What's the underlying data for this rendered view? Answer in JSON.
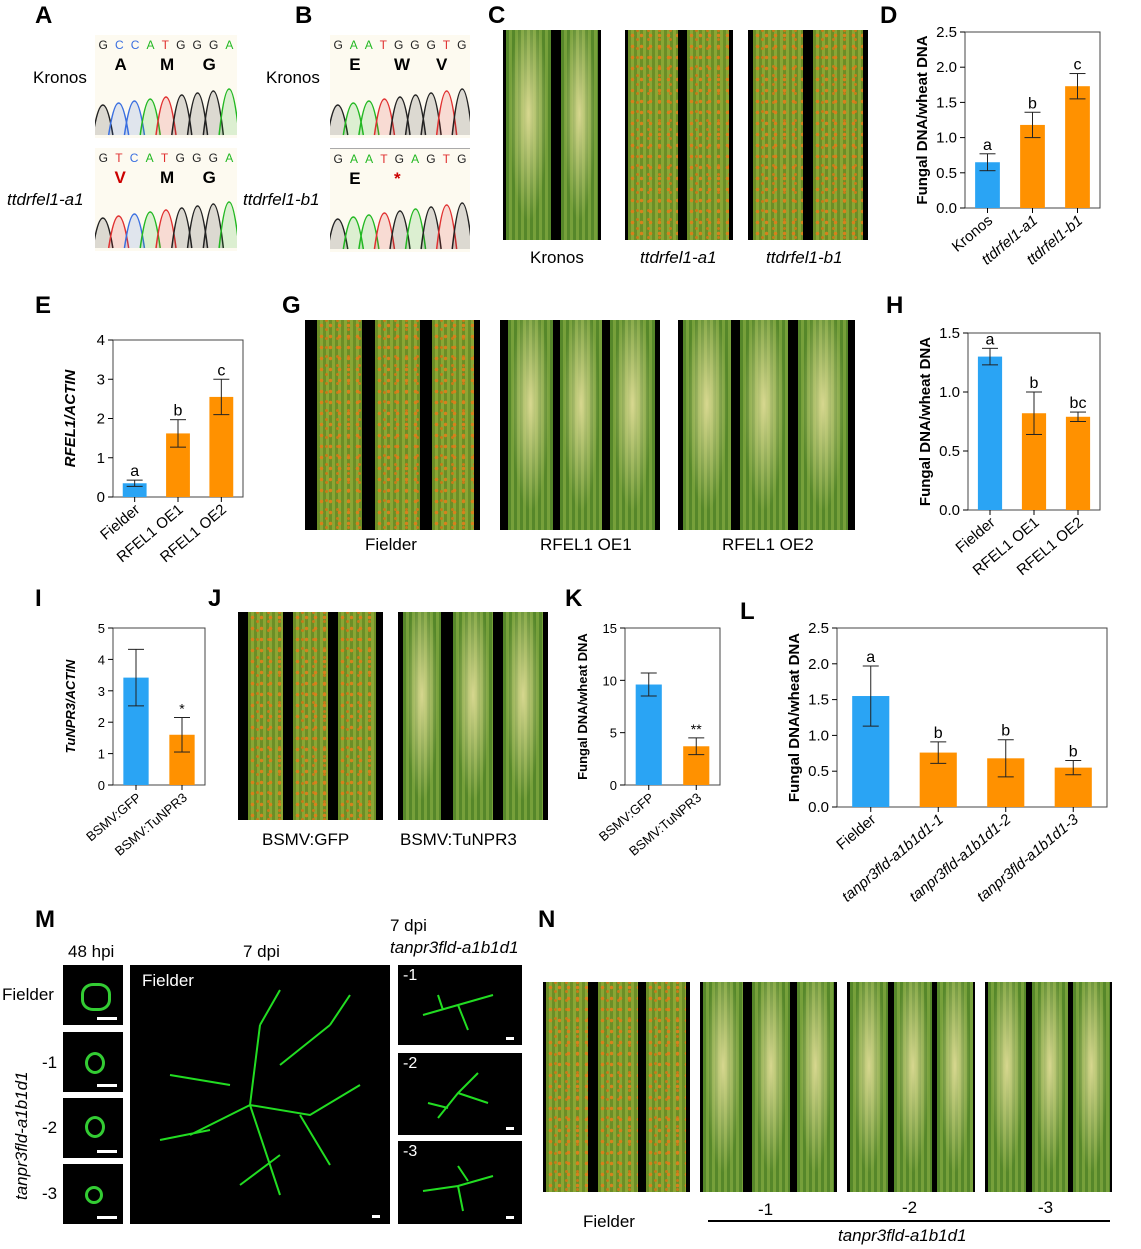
{
  "panels": {
    "A": "A",
    "B": "B",
    "C": "C",
    "D": "D",
    "E": "E",
    "G": "G",
    "H": "H",
    "I": "I",
    "J": "J",
    "K": "K",
    "L": "L",
    "M": "M",
    "N": "N"
  },
  "panelA": {
    "kronos": {
      "label": "Kronos",
      "seq": [
        "G",
        "C",
        "C",
        "A",
        "T",
        "G",
        "G",
        "G",
        "A"
      ],
      "aa": [
        "A",
        "M",
        "G"
      ]
    },
    "mutant": {
      "label": "ttdrfel1-a1",
      "seq": [
        "G",
        "T",
        "C",
        "A",
        "T",
        "G",
        "G",
        "G",
        "A"
      ],
      "aa": [
        "V",
        "M",
        "G"
      ]
    }
  },
  "panelB": {
    "kronos": {
      "label": "Kronos",
      "seq": [
        "G",
        "A",
        "A",
        "T",
        "G",
        "G",
        "G",
        "T",
        "G"
      ],
      "aa": [
        "E",
        "W",
        "V"
      ]
    },
    "mutant": {
      "label": "ttdrfel1-b1",
      "seq": [
        "G",
        "A",
        "A",
        "T",
        "G",
        "A",
        "G",
        "T",
        "G"
      ],
      "aa": [
        "E",
        "*"
      ]
    }
  },
  "base_colors": {
    "G": "#222222",
    "A": "#22b822",
    "T": "#e03030",
    "C": "#3a6fe0"
  },
  "panelC": {
    "labels": [
      "Kronos",
      "ttdrfel1-a1",
      "ttdrfel1-b1"
    ]
  },
  "panelG": {
    "labels": [
      "Fielder",
      "RFEL1 OE1",
      "RFEL1 OE2"
    ]
  },
  "panelJ": {
    "labels": [
      "BSMV:GFP",
      "BSMV:TuNPR3"
    ]
  },
  "panelM": {
    "col1": "48 hpi",
    "col2": "7 dpi",
    "col3a": "7 dpi",
    "col3b": "tanpr3fld-a1b1d1",
    "fielder": "Fielder",
    "inset_fielder": "Fielder",
    "rowgroup": "tanpr3fld-a1b1d1",
    "rows": [
      "-1",
      "-2",
      "-3"
    ]
  },
  "panelN": {
    "fielder": "Fielder",
    "lines": [
      "-1",
      "-2",
      "-3"
    ],
    "group": "tanpr3fld-a1b1d1"
  },
  "colors": {
    "control": "#2aa4f4",
    "mutant": "#ff9100"
  },
  "chart_data": [
    {
      "id": "D",
      "type": "bar",
      "ylabel": "Fungal DNA/wheat DNA",
      "ylim": [
        0,
        2.5
      ],
      "ticks": [
        "0.0",
        "0.5",
        "1.0",
        "1.5",
        "2.0",
        "2.5"
      ],
      "categories": [
        "Kronos",
        "ttdrfel1-a1",
        "ttdrfel1-b1"
      ],
      "values": [
        0.65,
        1.18,
        1.73
      ],
      "errors": [
        0.12,
        0.18,
        0.18
      ],
      "letters": [
        "a",
        "b",
        "c"
      ]
    },
    {
      "id": "E",
      "type": "bar",
      "ylabel": "RFEL1/ACTIN",
      "ylim": [
        0,
        4
      ],
      "ticks": [
        "0",
        "1",
        "2",
        "3",
        "4"
      ],
      "categories": [
        "Fielder",
        "RFEL1 OE1",
        "RFEL1 OE2"
      ],
      "values": [
        0.35,
        1.62,
        2.55
      ],
      "errors": [
        0.08,
        0.35,
        0.45
      ],
      "letters": [
        "a",
        "b",
        "c"
      ]
    },
    {
      "id": "H",
      "type": "bar",
      "ylabel": "Fungal DNA/wheat DNA",
      "ylim": [
        0,
        1.5
      ],
      "ticks": [
        "0.0",
        "0.5",
        "1.0",
        "1.5"
      ],
      "categories": [
        "Fielder",
        "RFEL1 OE1",
        "RFEL1 OE2"
      ],
      "values": [
        1.3,
        0.82,
        0.79
      ],
      "errors": [
        0.07,
        0.18,
        0.04
      ],
      "letters": [
        "a",
        "b",
        "bc"
      ]
    },
    {
      "id": "I",
      "type": "bar",
      "ylabel": "TuNPR3/ACTIN",
      "ylim": [
        0,
        5
      ],
      "ticks": [
        "0",
        "1",
        "2",
        "3",
        "4",
        "5"
      ],
      "categories": [
        "BSMV:GFP",
        "BSMV:TuNPR3"
      ],
      "values": [
        3.42,
        1.6
      ],
      "errors": [
        0.9,
        0.55
      ],
      "letters": [
        "",
        "*"
      ]
    },
    {
      "id": "K",
      "type": "bar",
      "ylabel": "Fungal DNA/wheat DNA",
      "ylim": [
        0,
        15
      ],
      "ticks": [
        "0",
        "5",
        "10",
        "15"
      ],
      "categories": [
        "BSMV:GFP",
        "BSMV:TuNPR3"
      ],
      "values": [
        9.6,
        3.7
      ],
      "errors": [
        1.1,
        0.8
      ],
      "letters": [
        "",
        "**"
      ]
    },
    {
      "id": "L",
      "type": "bar",
      "ylabel": "Fungal DNA/wheat DNA",
      "ylim": [
        0,
        2.5
      ],
      "ticks": [
        "0.0",
        "0.5",
        "1.0",
        "1.5",
        "2.0",
        "2.5"
      ],
      "categories": [
        "Fielder",
        "tanpr3fld-a1b1d1-1",
        "tanpr3fld-a1b1d1-2",
        "tanpr3fld-a1b1d1-3"
      ],
      "values": [
        1.55,
        0.76,
        0.68,
        0.55
      ],
      "errors": [
        0.42,
        0.15,
        0.26,
        0.1
      ],
      "letters": [
        "a",
        "b",
        "b",
        "b"
      ]
    }
  ]
}
